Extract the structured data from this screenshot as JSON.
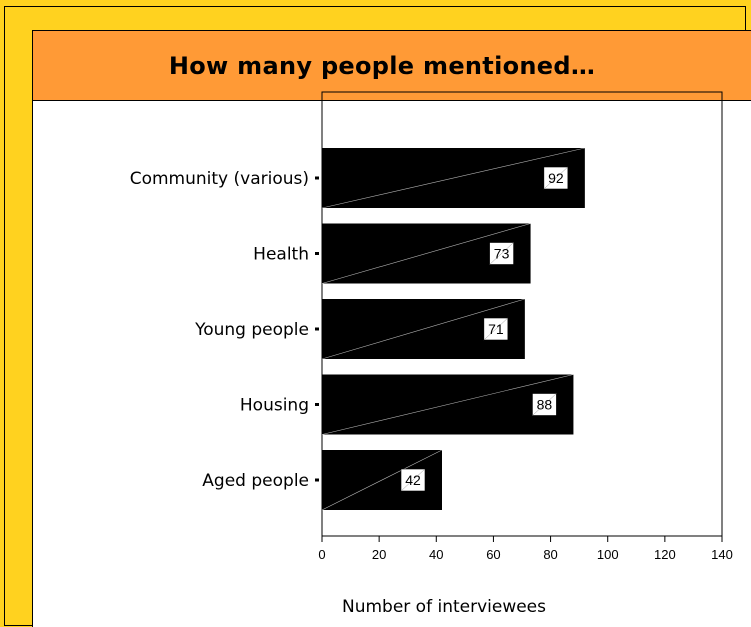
{
  "title": "How many people mentioned…",
  "colors": {
    "background": "#FFD21F",
    "title_bar": "#FF9A36",
    "bar_fill": "#000000",
    "panel": "#FFFFFF"
  },
  "chart_data": {
    "type": "bar",
    "orientation": "horizontal",
    "categories": [
      "Community (various)",
      "Health",
      "Young people",
      "Housing",
      "Aged people"
    ],
    "values": [
      92,
      73,
      71,
      88,
      42
    ],
    "data_labels": [
      "92",
      "73",
      "71",
      "88",
      "42"
    ],
    "xlabel": "Number of interviewees",
    "ylabel": "",
    "xlim": [
      0,
      140
    ],
    "xticks": [
      0,
      20,
      40,
      60,
      80,
      100,
      120,
      140
    ],
    "xtick_labels": [
      "0",
      "20",
      "40",
      "60",
      "80",
      "100",
      "120",
      "140"
    ],
    "grid": false,
    "legend": "none"
  }
}
